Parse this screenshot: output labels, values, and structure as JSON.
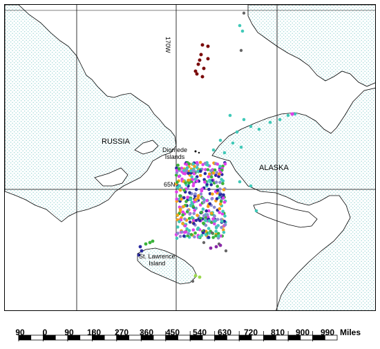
{
  "map": {
    "labels": {
      "russia": "RUSSIA",
      "alaska": "ALASKA",
      "diomede": "Diomede\nIslands",
      "st_lawrence": "St. Lawrence\nIsland",
      "lat": "65N",
      "lon": "170W"
    },
    "colors": {
      "water_dots": "#9fd6d6",
      "coast": "#000000",
      "grid": "#000000"
    },
    "marker_colors": [
      "#40c9b8",
      "#e040e8",
      "#f5a01a",
      "#2a2aa0",
      "#8a8ad0",
      "#3bb33b",
      "#7a0a0a",
      "#666666",
      "#9ad84c",
      "#8a2aa8"
    ]
  },
  "scale": {
    "ticks": [
      "90",
      "0",
      "90",
      "180",
      "270",
      "360",
      "450",
      "540",
      "630",
      "720",
      "810",
      "900",
      "990"
    ],
    "unit": "Miles"
  }
}
